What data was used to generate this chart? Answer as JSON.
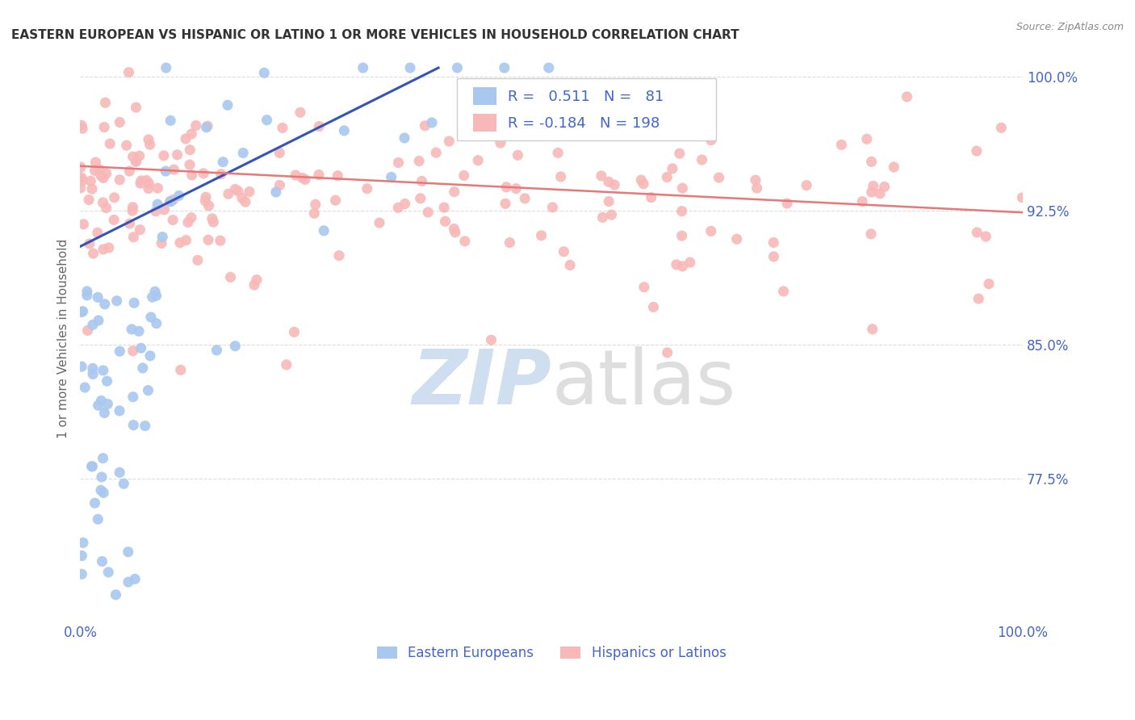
{
  "title": "EASTERN EUROPEAN VS HISPANIC OR LATINO 1 OR MORE VEHICLES IN HOUSEHOLD CORRELATION CHART",
  "source": "Source: ZipAtlas.com",
  "ylabel": "1 or more Vehicles in Household",
  "xlim": [
    0.0,
    1.0
  ],
  "ylim": [
    0.695,
    1.012
  ],
  "yticks": [
    0.775,
    0.85,
    0.925,
    1.0
  ],
  "ytick_labels": [
    "77.5%",
    "85.0%",
    "92.5%",
    "100.0%"
  ],
  "xtick_labels": [
    "0.0%",
    "100.0%"
  ],
  "legend_labels": [
    "Eastern Europeans",
    "Hispanics or Latinos"
  ],
  "blue_R": "0.511",
  "blue_N": "81",
  "pink_R": "-0.184",
  "pink_N": "198",
  "blue_color": "#a8c8f0",
  "pink_color": "#f8b8b8",
  "blue_line_color": "#3355bb",
  "pink_line_color": "#e87878",
  "axis_color": "#4466cc",
  "watermark_color": "#d0dff0",
  "blue_trend": [
    0.0,
    0.905,
    0.38,
    1.005
  ],
  "pink_trend": [
    0.0,
    0.95,
    1.0,
    0.924
  ]
}
